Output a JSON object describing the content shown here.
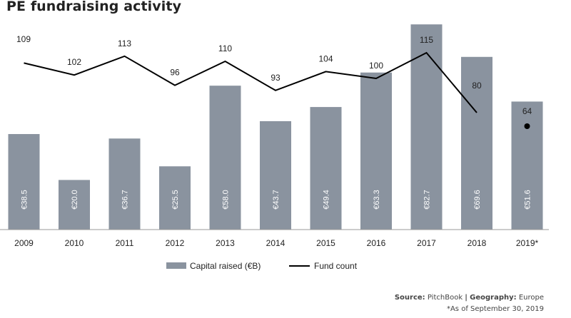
{
  "chart_data": {
    "type": "bar",
    "title": "PE fundraising activity",
    "categories": [
      "2009",
      "2010",
      "2011",
      "2012",
      "2013",
      "2014",
      "2015",
      "2016",
      "2017",
      "2018",
      "2019*"
    ],
    "series": [
      {
        "name": "Capital raised (€B)",
        "type": "bar",
        "values": [
          38.5,
          20.0,
          36.7,
          25.5,
          58.0,
          43.7,
          49.4,
          63.3,
          82.7,
          69.6,
          51.6
        ],
        "labels": [
          "€38.5",
          "€20.0",
          "€36.7",
          "€25.5",
          "€58.0",
          "€43.7",
          "€49.4",
          "€63.3",
          "€82.7",
          "€69.6",
          "€51.6"
        ],
        "color": "#8a939f"
      },
      {
        "name": "Fund count",
        "type": "line",
        "values": [
          109,
          102,
          113,
          96,
          110,
          93,
          104,
          100,
          115,
          80,
          64
        ],
        "color": "#000000"
      }
    ],
    "xlabel": "",
    "ylabel": "",
    "grid": false,
    "legend": "bottom-center"
  },
  "footer": {
    "source_label": "Source:",
    "source_value": "PitchBook",
    "separator": "|",
    "geo_label": "Geography:",
    "geo_value": "Europe",
    "note": "*As of September 30, 2019"
  }
}
